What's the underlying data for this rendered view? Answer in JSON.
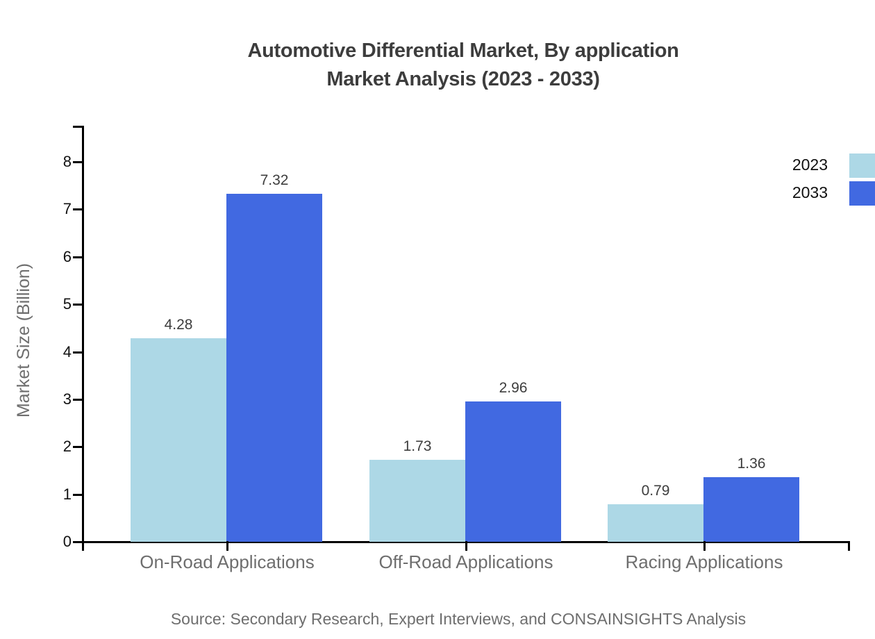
{
  "title": {
    "line1": "Automotive Differential Market, By application",
    "line2": "Market Analysis (2023 - 2033)"
  },
  "y_axis_label": "Market Size (Billion)",
  "source": "Source: Secondary Research, Expert Interviews, and CONSAINSIGHTS Analysis",
  "legend": [
    {
      "label": "2023",
      "color": "#ADD8E6"
    },
    {
      "label": "2033",
      "color": "#4169E1"
    }
  ],
  "chart_data": {
    "type": "bar",
    "title": "Automotive Differential Market, By application Market Analysis (2023 - 2033)",
    "categories": [
      "On-Road Applications",
      "Off-Road Applications",
      "Racing Applications"
    ],
    "series": [
      {
        "name": "2023",
        "color": "#ADD8E6",
        "values": [
          4.28,
          1.73,
          0.79
        ]
      },
      {
        "name": "2033",
        "color": "#4169E1",
        "values": [
          7.32,
          2.96,
          1.36
        ]
      }
    ],
    "xlabel": "",
    "ylabel": "Market Size (Billion)",
    "ylim": [
      0,
      8.8
    ],
    "yticks": [
      0,
      1,
      2,
      3,
      4,
      5,
      6,
      7,
      8
    ],
    "grid": false,
    "legend_position": "top-right",
    "value_labels": true,
    "value_label_format": "0.00",
    "axis_color": "#000000"
  }
}
